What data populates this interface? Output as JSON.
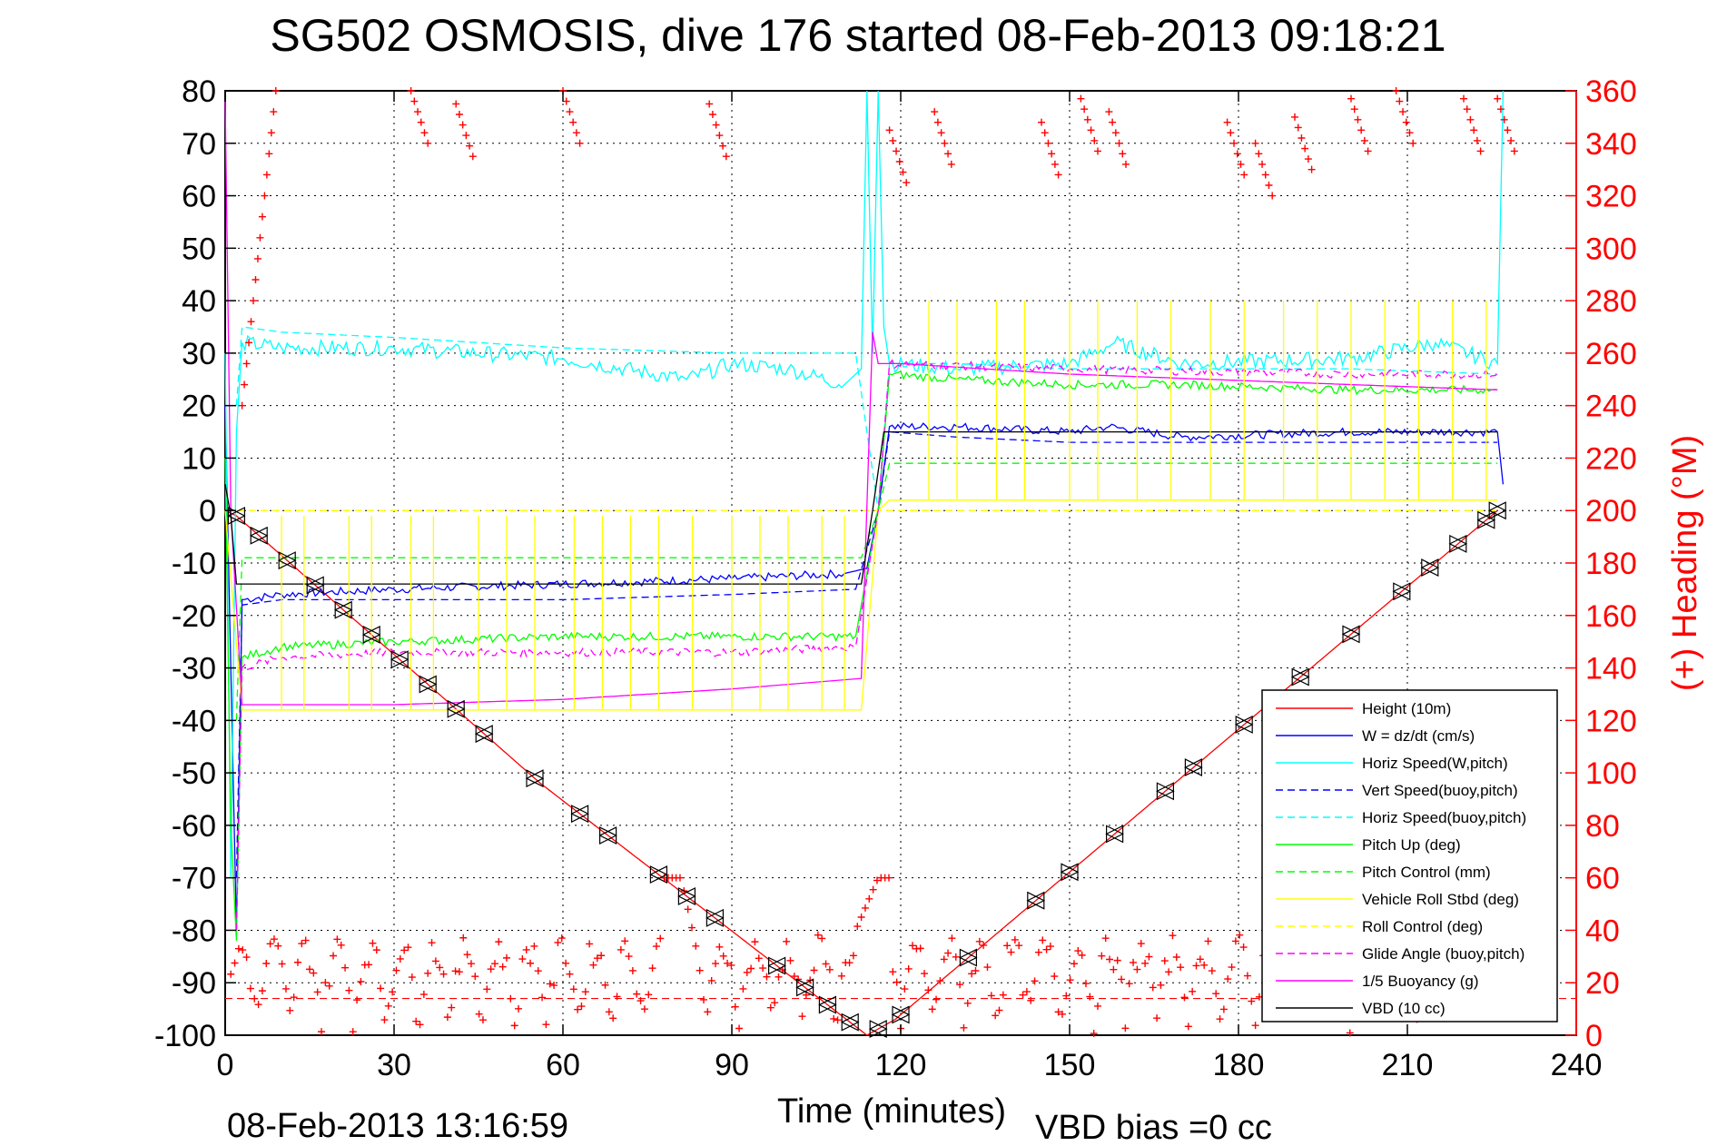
{
  "title": "SG502 OSMOSIS, dive 176 started 08-Feb-2013 09:18:21",
  "footer_timestamp": "08-Feb-2013 13:16:59",
  "vbd_bias": "VBD bias =0 cc",
  "chart_data": {
    "type": "line",
    "title": "SG502 OSMOSIS, dive 176 started 08-Feb-2013 09:18:21",
    "xlabel": "Time (minutes)",
    "ylabel": "",
    "y2label": "(+) Heading (°M)",
    "xlim": [
      0,
      240
    ],
    "ylim": [
      -100,
      80
    ],
    "y2lim": [
      0,
      360
    ],
    "xticks": [
      "0",
      "30",
      "60",
      "90",
      "120",
      "150",
      "180",
      "210",
      "240"
    ],
    "yticks": [
      "80",
      "70",
      "60",
      "50",
      "40",
      "30",
      "20",
      "10",
      "0",
      "-10",
      "-20",
      "-30",
      "-40",
      "-50",
      "-60",
      "-70",
      "-80",
      "-90",
      "-100"
    ],
    "y2ticks": [
      "360",
      "340",
      "320",
      "300",
      "280",
      "260",
      "240",
      "220",
      "200",
      "180",
      "160",
      "140",
      "120",
      "100",
      "80",
      "60",
      "40",
      "20",
      "0"
    ],
    "grid": true,
    "legend_position": "bottom-right",
    "colors": {
      "height": "#ff0000",
      "w": "#0000ff",
      "horiz_w": "#00ffff",
      "vert_buoy": "#0000ff",
      "horiz_buoy": "#00ffff",
      "pitch": "#00ff00",
      "pitch_ctrl": "#00ff00",
      "roll": "#ffff00",
      "roll_ctrl": "#ffff00",
      "glide": "#ff00ff",
      "buoy": "#ff00ff",
      "vbd": "#000000",
      "heading": "#ff0000"
    },
    "series": [
      {
        "key": "height",
        "name": "Height (10m)",
        "style": "solid",
        "color": "#ff0000",
        "x": [
          0,
          2,
          56,
          114,
          119,
          226
        ],
        "y": [
          0,
          -1,
          -52,
          -100,
          -97,
          0
        ]
      },
      {
        "key": "w",
        "name": "W = dz/dt (cm/s)",
        "style": "solid",
        "color": "#0000ff",
        "x": [
          0,
          1,
          2,
          3,
          10,
          30,
          60,
          90,
          110,
          114,
          116,
          118,
          130,
          150,
          157,
          170,
          200,
          226,
          227
        ],
        "y": [
          20,
          -30,
          -80,
          -17,
          -16,
          -15,
          -14,
          -13,
          -12,
          -11,
          0,
          16,
          16,
          15,
          16,
          14,
          15,
          15,
          5
        ]
      },
      {
        "key": "horiz_w",
        "name": "Horiz Speed(W,pitch)",
        "style": "solid",
        "color": "#00ffff",
        "x": [
          0,
          1,
          2,
          3,
          10,
          30,
          60,
          82,
          90,
          100,
          110,
          113,
          114,
          115,
          116,
          117,
          118,
          130,
          150,
          158,
          170,
          200,
          215,
          226,
          227
        ],
        "y": [
          30,
          -70,
          15,
          32,
          31,
          31,
          29,
          25,
          28,
          27,
          24,
          27,
          80,
          30,
          80,
          35,
          28,
          27,
          28,
          32,
          28,
          29,
          32,
          28,
          80
        ]
      },
      {
        "key": "vert_buoy",
        "name": "Vert Speed(buoy,pitch)",
        "style": "dashed",
        "color": "#0000ff",
        "x": [
          2,
          3,
          10,
          30,
          60,
          90,
          112,
          116,
          118,
          130,
          150,
          170,
          200,
          226
        ],
        "y": [
          -70,
          -18,
          -17,
          -17,
          -17,
          -16,
          -15,
          0,
          15,
          14,
          13,
          13,
          13,
          13
        ]
      },
      {
        "key": "horiz_buoy",
        "name": "Horiz Speed(buoy,pitch)",
        "style": "dashed",
        "color": "#00ffff",
        "x": [
          2,
          3,
          10,
          30,
          60,
          90,
          112,
          116,
          118,
          130,
          150,
          170,
          200,
          226
        ],
        "y": [
          20,
          35,
          34,
          33,
          31,
          30,
          30,
          0,
          28,
          28,
          27,
          27,
          27,
          26
        ]
      },
      {
        "key": "pitch",
        "name": "Pitch Up (deg)",
        "style": "solid",
        "color": "#00ff00",
        "x": [
          0,
          1,
          2,
          3,
          10,
          30,
          60,
          90,
          112,
          116,
          118,
          130,
          150,
          170,
          200,
          226
        ],
        "y": [
          10,
          -60,
          -82,
          -28,
          -26,
          -25,
          -24,
          -24,
          -24,
          0,
          26,
          25,
          24,
          24,
          23,
          23
        ]
      },
      {
        "key": "pitch_ctrl",
        "name": "Pitch Control (mm)",
        "style": "dashed",
        "color": "#00ff00",
        "x": [
          2,
          3,
          30,
          60,
          90,
          113,
          116,
          118,
          150,
          226
        ],
        "y": [
          -40,
          -9,
          -9,
          -9,
          -9,
          -9,
          0,
          9,
          9,
          9
        ]
      },
      {
        "key": "roll",
        "name": "Vehicle Roll Stbd (deg)",
        "style": "solid",
        "color": "#ffff00",
        "x": [
          0,
          3,
          113,
          116,
          118,
          226
        ],
        "y": [
          0,
          -38,
          -38,
          0,
          2,
          2
        ]
      },
      {
        "key": "roll_ctrl",
        "name": "Roll Control (deg)",
        "style": "dashed",
        "color": "#ffff00",
        "x": [
          0,
          3,
          113,
          116,
          118,
          226
        ],
        "y": [
          0,
          0,
          0,
          0,
          0,
          0
        ]
      },
      {
        "key": "glide",
        "name": "Glide Angle (buoy,pitch)",
        "style": "dashed",
        "color": "#ff00ff",
        "x": [
          2,
          3,
          10,
          30,
          60,
          90,
          112,
          116,
          118,
          150,
          200,
          226
        ],
        "y": [
          -80,
          -30,
          -28,
          -27,
          -27,
          -27,
          -26,
          0,
          28,
          27,
          26,
          26
        ]
      },
      {
        "key": "buoy",
        "name": "1/5 Buoyancy (g)",
        "style": "solid",
        "color": "#ff00ff",
        "x": [
          0,
          1,
          3,
          30,
          60,
          90,
          113,
          115,
          116,
          120,
          150,
          200,
          226
        ],
        "y": [
          78,
          0,
          -37,
          -37,
          -36,
          -34,
          -32,
          34,
          28,
          28,
          26,
          24,
          23
        ]
      },
      {
        "key": "vbd",
        "name": "VBD (10 cc)",
        "style": "solid",
        "color": "#000000",
        "x": [
          0,
          1,
          2,
          3,
          113,
          115,
          117,
          118,
          226
        ],
        "y": [
          5,
          -1,
          -14,
          -14,
          -14,
          0,
          15,
          15,
          15
        ]
      }
    ],
    "heading_bias_deg": 14
  }
}
